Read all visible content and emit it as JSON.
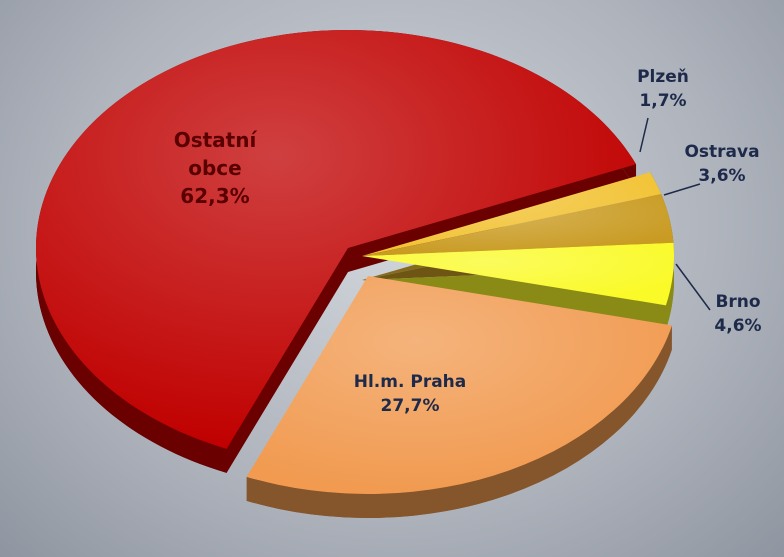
{
  "chart_data": {
    "type": "pie",
    "categories": [
      "Plzeň",
      "Ostrava",
      "Brno",
      "Hl.m. Praha",
      "Ostatní obce"
    ],
    "values": [
      1.7,
      3.6,
      4.6,
      27.7,
      62.3
    ],
    "value_labels": [
      "1,7%",
      "3,6%",
      "4,6%",
      "27,7%",
      "62,3%"
    ],
    "colors": [
      "#f2c232",
      "#c99b22",
      "#fafa28",
      "#f19a50",
      "#c00000"
    ]
  }
}
